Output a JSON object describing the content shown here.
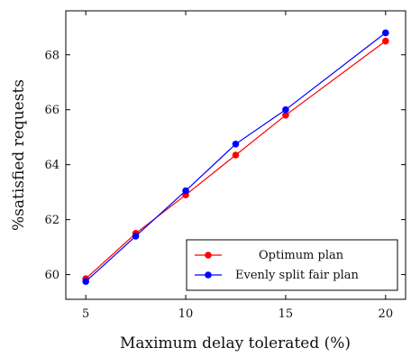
{
  "chart_data": {
    "type": "line",
    "title": "",
    "xlabel": "Maximum delay tolerated (%)",
    "ylabel": "%satisfied requests",
    "xlim": [
      4.0,
      21.0
    ],
    "ylim": [
      59.1,
      69.6
    ],
    "xticks": [
      5,
      10,
      15,
      20
    ],
    "xtick_labels": [
      "5",
      "10",
      "15",
      "20"
    ],
    "yticks": [
      60,
      62,
      64,
      66,
      68
    ],
    "ytick_labels": [
      "60",
      "62",
      "64",
      "66",
      "68"
    ],
    "grid": false,
    "legend_position": "bottom-right",
    "series": [
      {
        "name": "Optimum plan",
        "color": "#ff0000",
        "marker": "circle",
        "x": [
          5,
          7.5,
          10,
          12.5,
          15,
          20
        ],
        "y": [
          59.85,
          61.5,
          62.9,
          64.35,
          65.8,
          68.5
        ]
      },
      {
        "name": "Evenly split fair plan",
        "color": "#0000ff",
        "marker": "circle",
        "x": [
          5,
          7.5,
          10,
          12.5,
          15,
          20
        ],
        "y": [
          59.75,
          61.4,
          63.05,
          64.75,
          66.0,
          68.8
        ]
      }
    ]
  }
}
